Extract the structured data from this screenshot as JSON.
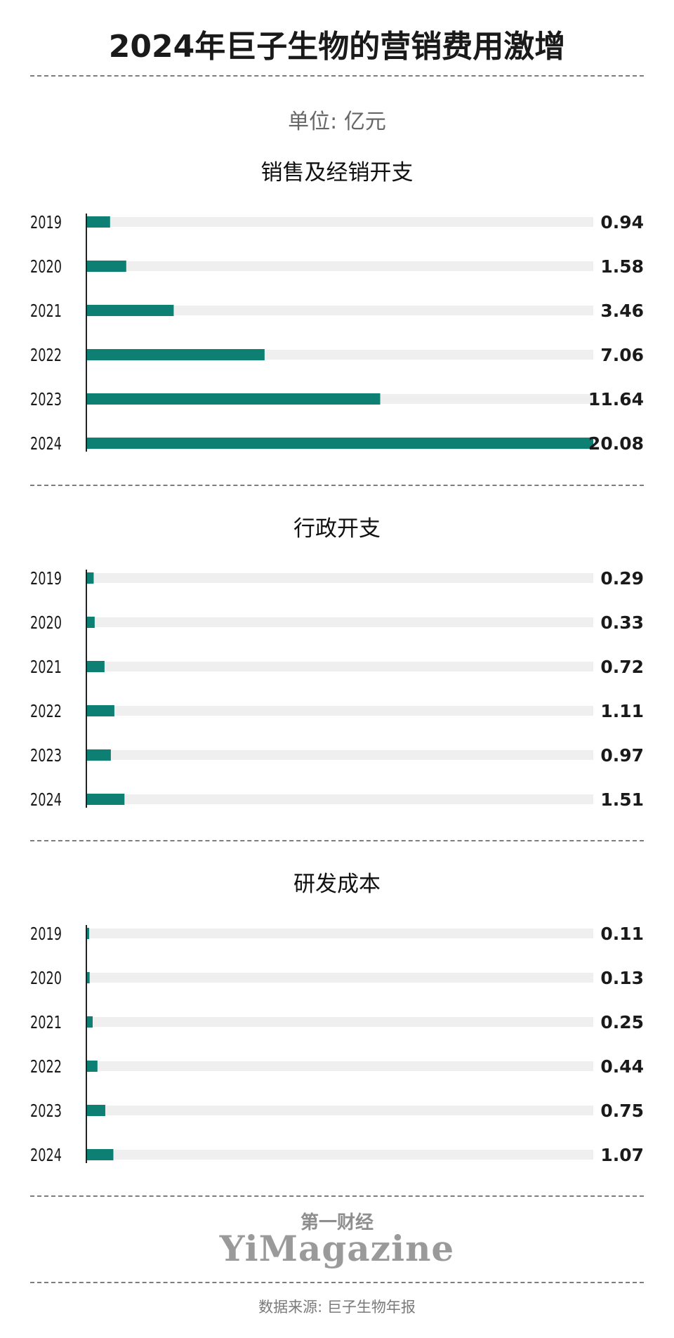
{
  "title": "2024年巨子生物的营销费用激增",
  "unit": "单位: 亿元",
  "colors": {
    "bar": "#0e7f73",
    "track": "#efefef",
    "text": "#1a1a1a"
  },
  "chart_data": [
    {
      "type": "bar",
      "title": "销售及经销开支",
      "categories": [
        "2019",
        "2020",
        "2021",
        "2022",
        "2023",
        "2024"
      ],
      "values": [
        0.94,
        1.58,
        3.46,
        7.06,
        11.64,
        20.08
      ],
      "value_labels": [
        "0.94",
        "1.58",
        "3.46",
        "7.06",
        "11.64",
        "20.08"
      ],
      "xlim": [
        0,
        20.08
      ],
      "orientation": "horizontal"
    },
    {
      "type": "bar",
      "title": "行政开支",
      "categories": [
        "2019",
        "2020",
        "2021",
        "2022",
        "2023",
        "2024"
      ],
      "values": [
        0.29,
        0.33,
        0.72,
        1.11,
        0.97,
        1.51
      ],
      "value_labels": [
        "0.29",
        "0.33",
        "0.72",
        "1.11",
        "0.97",
        "1.51"
      ],
      "xlim": [
        0,
        20.08
      ],
      "orientation": "horizontal"
    },
    {
      "type": "bar",
      "title": "研发成本",
      "categories": [
        "2019",
        "2020",
        "2021",
        "2022",
        "2023",
        "2024"
      ],
      "values": [
        0.11,
        0.13,
        0.25,
        0.44,
        0.75,
        1.07
      ],
      "value_labels": [
        "0.11",
        "0.13",
        "0.25",
        "0.44",
        "0.75",
        "1.07"
      ],
      "xlim": [
        0,
        20.08
      ],
      "orientation": "horizontal"
    }
  ],
  "logo": {
    "cn": "第一财经",
    "en": "YiMagazine"
  },
  "source": "数据来源: 巨子生物年报"
}
